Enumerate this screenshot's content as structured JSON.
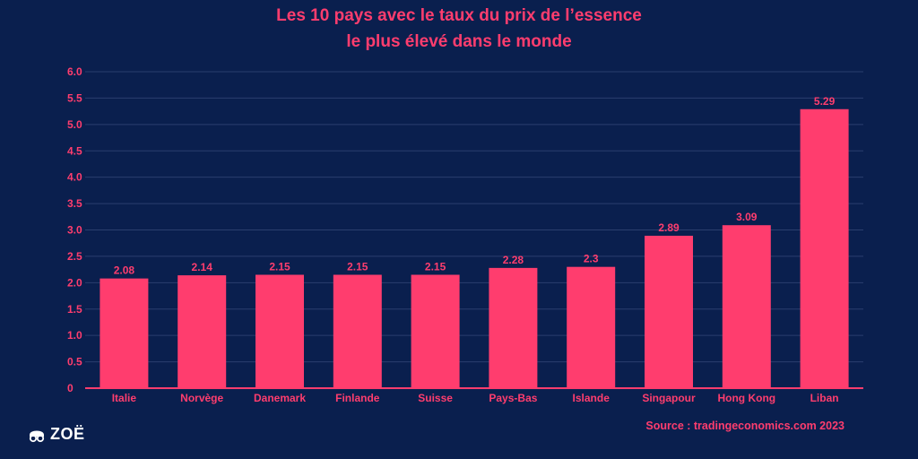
{
  "chart_data": {
    "type": "bar",
    "title_line1": "Les 10 pays avec le taux du prix de l’essence",
    "title_line2": "le plus élevé dans le monde",
    "categories": [
      "Italie",
      "Norvège",
      "Danemark",
      "Finlande",
      "Suisse",
      "Pays-Bas",
      "Islande",
      "Singapour",
      "Hong Kong",
      "Liban"
    ],
    "values": [
      2.08,
      2.14,
      2.15,
      2.15,
      2.15,
      2.28,
      2.3,
      2.89,
      3.09,
      5.29
    ],
    "value_labels": [
      "2.08",
      "2.14",
      "2.15",
      "2.15",
      "2.15",
      "2.28",
      "2.3",
      "2.89",
      "3.09",
      "5.29"
    ],
    "yticks": [
      0,
      0.5,
      1.0,
      1.5,
      2.0,
      2.5,
      3.0,
      3.5,
      4.0,
      4.5,
      5.0,
      5.5,
      6.0
    ],
    "ytick_labels": [
      "0",
      "0.5",
      "1.0",
      "1.5",
      "2.0",
      "2.5",
      "3.0",
      "3.5",
      "4.0",
      "4.5",
      "5.0",
      "5.5",
      "6.0"
    ],
    "ylim": [
      0,
      6
    ],
    "grid": true,
    "xlabel": "",
    "ylabel": ""
  },
  "source": "Source : tradingeconomics.com 2023",
  "logo": {
    "text": "ZOË",
    "icon": "glasses-face-icon"
  },
  "colors": {
    "background": "#0a1f4e",
    "bar": "#ff3d6e",
    "text_accent": "#ff3d6e",
    "gridline": "#2b3f6e"
  }
}
